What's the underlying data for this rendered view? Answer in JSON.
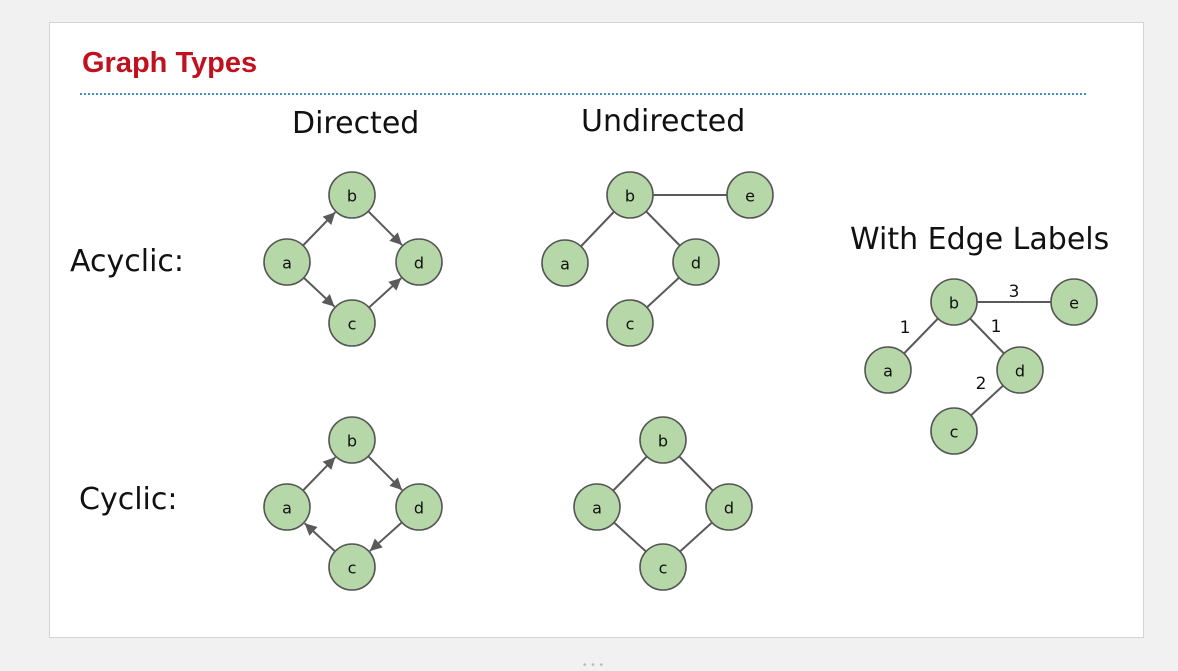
{
  "slide": {
    "title": "Graph Types",
    "colors": {
      "title": "#c0111f",
      "rule": "#3a8fc7",
      "node_fill": "#b6d7a8",
      "node_stroke": "#555555",
      "edge": "#5a5a5a"
    }
  },
  "headings": {
    "directed": "Directed",
    "undirected": "Undirected",
    "acyclic": "Acyclic:",
    "cyclic": "Cyclic:",
    "edge_labels": "With Edge Labels"
  },
  "graphs": [
    {
      "id": "directed-acyclic",
      "directed": true,
      "nodes": [
        "a",
        "b",
        "c",
        "d"
      ],
      "edges": [
        {
          "from": "a",
          "to": "b"
        },
        {
          "from": "b",
          "to": "d"
        },
        {
          "from": "a",
          "to": "c"
        },
        {
          "from": "c",
          "to": "d"
        }
      ]
    },
    {
      "id": "undirected-acyclic",
      "directed": false,
      "nodes": [
        "a",
        "b",
        "c",
        "d",
        "e"
      ],
      "edges": [
        {
          "from": "b",
          "to": "e"
        },
        {
          "from": "b",
          "to": "a"
        },
        {
          "from": "b",
          "to": "d"
        },
        {
          "from": "d",
          "to": "c"
        }
      ]
    },
    {
      "id": "directed-cyclic",
      "directed": true,
      "nodes": [
        "a",
        "b",
        "c",
        "d"
      ],
      "edges": [
        {
          "from": "a",
          "to": "b"
        },
        {
          "from": "b",
          "to": "d"
        },
        {
          "from": "d",
          "to": "c"
        },
        {
          "from": "c",
          "to": "a"
        }
      ]
    },
    {
      "id": "undirected-cyclic",
      "directed": false,
      "nodes": [
        "a",
        "b",
        "c",
        "d"
      ],
      "edges": [
        {
          "from": "a",
          "to": "b"
        },
        {
          "from": "b",
          "to": "d"
        },
        {
          "from": "d",
          "to": "c"
        },
        {
          "from": "c",
          "to": "a"
        }
      ]
    },
    {
      "id": "edge-labels",
      "directed": false,
      "nodes": [
        "a",
        "b",
        "c",
        "d",
        "e"
      ],
      "edges": [
        {
          "from": "b",
          "to": "e",
          "label": "3"
        },
        {
          "from": "b",
          "to": "a",
          "label": "1"
        },
        {
          "from": "b",
          "to": "d",
          "label": "1"
        },
        {
          "from": "d",
          "to": "c",
          "label": "2"
        }
      ]
    }
  ]
}
